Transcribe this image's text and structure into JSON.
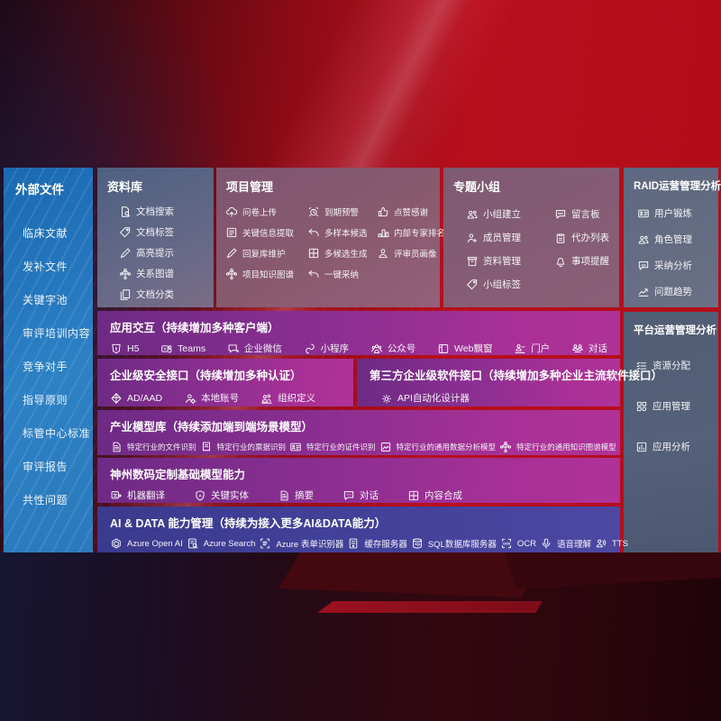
{
  "colors": {
    "bg_red": "#b70e1c",
    "sidebar_blue": "#1e6fb6",
    "panel_slate": "#5a6a85",
    "row_purple": "#8c2f91",
    "row_indigo": "#42409a",
    "text": "#ffffff"
  },
  "sidebar": {
    "title": "外部文件",
    "items": [
      "临床文献",
      "发补文件",
      "关键字池",
      "审评培训内容",
      "竞争对手",
      "指导原则",
      "标管中心标准",
      "审评报告",
      "共性问题"
    ]
  },
  "panels": {
    "library": {
      "title": "资料库",
      "items": [
        {
          "icon": "doc-search-icon",
          "label": "文档搜索"
        },
        {
          "icon": "tag-icon",
          "label": "文档标签"
        },
        {
          "icon": "highlight-pen-icon",
          "label": "高亮提示"
        },
        {
          "icon": "knowledge-graph-icon",
          "label": "关系图谱"
        },
        {
          "icon": "doc-copy-icon",
          "label": "文档分类"
        }
      ]
    },
    "project": {
      "title": "项目管理",
      "items": [
        {
          "icon": "cloud-upload-icon",
          "label": "问卷上传"
        },
        {
          "icon": "alarm-icon",
          "label": "到期预警"
        },
        {
          "icon": "thumb-up-icon",
          "label": "点赞感谢"
        },
        {
          "icon": "extract-icon",
          "label": "关键信息提取"
        },
        {
          "icon": "reply-icon",
          "label": "多样本候选"
        },
        {
          "icon": "podium-icon",
          "label": "内部专家排名"
        },
        {
          "icon": "highlight-pen-icon",
          "label": "回复库维护"
        },
        {
          "icon": "multi-gen-icon",
          "label": "多候选生成"
        },
        {
          "icon": "person-icon",
          "label": "评审员画像"
        },
        {
          "icon": "knowledge-graph-icon",
          "label": "项目知识图谱"
        },
        {
          "icon": "reply-icon",
          "label": "一键采纳"
        }
      ]
    },
    "group": {
      "title": "专题小组",
      "items": [
        {
          "icon": "people-icon",
          "label": "小组建立"
        },
        {
          "icon": "bbs-icon",
          "label": "留言板"
        },
        {
          "icon": "person-add-icon",
          "label": "成员管理"
        },
        {
          "icon": "todo-icon",
          "label": "代办列表"
        },
        {
          "icon": "archive-icon",
          "label": "资料管理"
        },
        {
          "icon": "bell-icon",
          "label": "事项提醒"
        },
        {
          "icon": "tag-icon",
          "label": "小组标签"
        }
      ]
    },
    "raid": {
      "title": "RAID运营管理分析",
      "items": [
        {
          "icon": "idcard-icon",
          "label": "用户锻炼"
        },
        {
          "icon": "people-icon",
          "label": "角色管理"
        },
        {
          "icon": "qa-chat-icon",
          "label": "采纳分析"
        },
        {
          "icon": "trend-icon",
          "label": "问题趋势"
        }
      ]
    },
    "platform": {
      "title": "平台运营管理分析",
      "items": [
        {
          "icon": "list-alloc-icon",
          "label": "资源分配"
        },
        {
          "icon": "app-grid-icon",
          "label": "应用管理"
        },
        {
          "icon": "app-chart-icon",
          "label": "应用分析"
        }
      ]
    }
  },
  "rows": {
    "interaction": {
      "title": "应用交互（持续增加多种客户端）",
      "items": [
        {
          "icon": "h5-icon",
          "label": "H5"
        },
        {
          "icon": "teams-icon",
          "label": "Teams"
        },
        {
          "icon": "wechat-work-icon",
          "label": "企业微信"
        },
        {
          "icon": "miniprogram-icon",
          "label": "小程序"
        },
        {
          "icon": "official-account-icon",
          "label": "公众号"
        },
        {
          "icon": "web-window-icon",
          "label": "Web飘窗"
        },
        {
          "icon": "portal-icon",
          "label": "门户"
        },
        {
          "icon": "dialog-icon",
          "label": "对话"
        }
      ]
    },
    "security": {
      "title": "企业级安全接口（持续增加多种认证）",
      "items": [
        {
          "icon": "ad-shield-icon",
          "label": "AD/AAD"
        },
        {
          "icon": "local-account-icon",
          "label": "本地账号"
        },
        {
          "icon": "org-icon",
          "label": "组织定义"
        }
      ]
    },
    "thirdparty": {
      "title": "第三方企业级软件接口（持续增加多种企业主流软件接口）",
      "items": [
        {
          "icon": "api-gear-icon",
          "label": "API自动化设计器"
        }
      ]
    },
    "industry": {
      "title": "产业模型库（持续添加端到端场景模型）",
      "items": [
        {
          "icon": "summary-doc-icon",
          "label": "特定行业的文件识别"
        },
        {
          "icon": "receipt-icon",
          "label": "特定行业的票据识别"
        },
        {
          "icon": "idcard-icon",
          "label": "特定行业的证件识别"
        },
        {
          "icon": "photo-chart-icon",
          "label": "特定行业的通用数据分析模型"
        },
        {
          "icon": "knowledge-graph-icon",
          "label": "特定行业的通用知识图谱模型"
        }
      ]
    },
    "basemodel": {
      "title": "神州数码定制基础模型能力",
      "items": [
        {
          "icon": "translate-icon",
          "label": "机器翻译"
        },
        {
          "icon": "entity-shield-icon",
          "label": "关键实体"
        },
        {
          "icon": "summary-doc-icon",
          "label": "摘要"
        },
        {
          "icon": "chat-dots-icon",
          "label": "对话"
        },
        {
          "icon": "multi-gen-icon",
          "label": "内容合成"
        }
      ]
    },
    "aidata": {
      "title": "AI & DATA 能力管理（持续为接入更多AI&DATA能力）",
      "items": [
        {
          "icon": "openai-icon",
          "label": "Azure Open AI"
        },
        {
          "icon": "azure-search-icon",
          "label": "Azure Search"
        },
        {
          "icon": "form-recognizer-icon",
          "label": "Azure 表单识别器"
        },
        {
          "icon": "cache-server-icon",
          "label": "缓存服务器"
        },
        {
          "icon": "sql-db-icon",
          "label": "SQL数据库服务器"
        },
        {
          "icon": "ocr-icon",
          "label": "OCR"
        },
        {
          "icon": "speech-icon",
          "label": "语音理解"
        },
        {
          "icon": "tts-icon",
          "label": "TTS"
        }
      ]
    }
  }
}
